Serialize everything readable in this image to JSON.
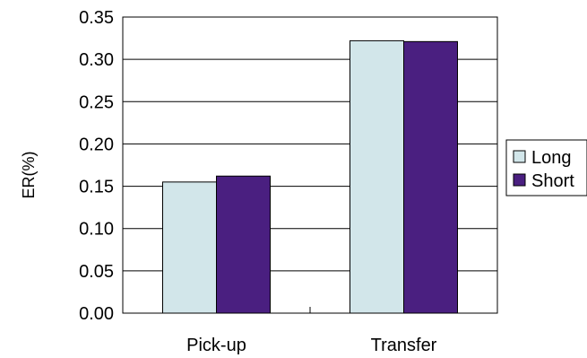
{
  "chart_data": {
    "type": "bar",
    "title": "",
    "xlabel": "",
    "ylabel": "ER(%)",
    "categories": [
      "Pick-up",
      "Transfer"
    ],
    "series": [
      {
        "name": "Long",
        "values": [
          0.155,
          0.322
        ],
        "color": "#d2e6ea"
      },
      {
        "name": "Short",
        "values": [
          0.162,
          0.321
        ],
        "color": "#4a1f80"
      }
    ],
    "ylim": [
      0,
      0.35
    ],
    "yticks": [
      "0.00",
      "0.05",
      "0.10",
      "0.15",
      "0.20",
      "0.25",
      "0.30",
      "0.35"
    ],
    "grid": true,
    "legend_position": "right"
  }
}
